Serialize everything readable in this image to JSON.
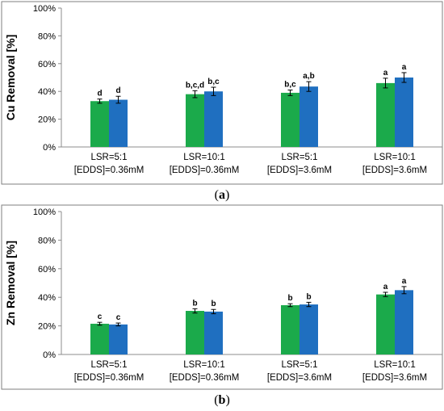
{
  "colors": {
    "series1": "#1BAA4B",
    "series2": "#1F6FC0",
    "frame": "#7F7F7F"
  },
  "chart_data": [
    {
      "type": "bar",
      "panel_label": "a",
      "ylabel": "Cu Removal [%]",
      "ylim": [
        0,
        100
      ],
      "yticks": [
        "0%",
        "20%",
        "40%",
        "60%",
        "80%",
        "100%"
      ],
      "categories": [
        [
          "LSR=5:1",
          "[EDDS]=0.36mM"
        ],
        [
          "LSR=10:1",
          "[EDDS]=0.36mM"
        ],
        [
          "LSR=5:1",
          "[EDDS]=3.6mM"
        ],
        [
          "LSR=10:1",
          "[EDDS]=3.6mM"
        ]
      ],
      "series": [
        {
          "values": [
            33,
            38,
            39,
            46
          ],
          "errors": [
            1.5,
            2.5,
            2,
            3.5
          ],
          "labels": [
            "d",
            "b,c,d",
            "b,c",
            "a"
          ]
        },
        {
          "values": [
            34,
            40,
            43.5,
            50
          ],
          "errors": [
            2.5,
            3,
            3.5,
            3.5
          ],
          "labels": [
            "d",
            "b,c",
            "a,b",
            "a"
          ]
        }
      ],
      "grid": false,
      "legend": "none"
    },
    {
      "type": "bar",
      "panel_label": "b",
      "ylabel": "Zn Removal [%]",
      "ylim": [
        0,
        100
      ],
      "yticks": [
        "0%",
        "20%",
        "40%",
        "60%",
        "80%",
        "100%"
      ],
      "categories": [
        [
          "LSR=5:1",
          "[EDDS]=0.36mM"
        ],
        [
          "LSR=10:1",
          "[EDDS]=0.36mM"
        ],
        [
          "LSR=5:1",
          "[EDDS]=3.6mM"
        ],
        [
          "LSR=10:1",
          "[EDDS]=3.6mM"
        ]
      ],
      "series": [
        {
          "values": [
            21.5,
            30.5,
            34.5,
            42
          ],
          "errors": [
            1,
            1.5,
            1,
            1.5
          ],
          "labels": [
            "c",
            "b",
            "b",
            "a"
          ]
        },
        {
          "values": [
            21,
            30,
            35,
            45
          ],
          "errors": [
            1,
            1.5,
            1.5,
            2.5
          ],
          "labels": [
            "c",
            "b",
            "b",
            "a"
          ]
        }
      ],
      "grid": false,
      "legend": "none"
    }
  ]
}
